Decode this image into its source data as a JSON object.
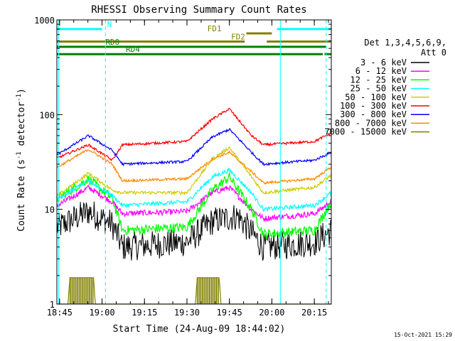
{
  "chart_data": {
    "type": "line",
    "title": "RHESSI Observing Summary Count Rates",
    "xlabel": "Start Time (24-Aug-09 18:44:02)",
    "ylabel_parts": [
      "Count Rate (s",
      "-1",
      " detector",
      "-1",
      ")"
    ],
    "yscale": "log",
    "ylim": [
      1,
      1000
    ],
    "xlim": [
      18.734,
      20.35
    ],
    "x_ticks": [
      {
        "v": 18.75,
        "label": "18:45"
      },
      {
        "v": 19.0,
        "label": "19:00"
      },
      {
        "v": 19.25,
        "label": "19:15"
      },
      {
        "v": 19.5,
        "label": "19:30"
      },
      {
        "v": 19.75,
        "label": "19:45"
      },
      {
        "v": 20.0,
        "label": "20:00"
      },
      {
        "v": 20.25,
        "label": "20:15"
      }
    ],
    "y_ticks": [
      {
        "v": 1,
        "label": "1"
      },
      {
        "v": 10,
        "label": "10"
      },
      {
        "v": 100,
        "label": "100"
      },
      {
        "v": 1000,
        "label": "1000"
      }
    ],
    "legend": {
      "title_lines": [
        "Det 1,3,4,5,6,9,",
        "Att 0"
      ],
      "position": "right"
    },
    "gaps": [
      [
        19.0,
        19.12
      ],
      [
        19.95,
        20.03
      ]
    ],
    "series": [
      {
        "name": "3 - 6 keV",
        "color": "#000000",
        "noise": 0.35,
        "base": [
          [
            18.74,
            6.5
          ],
          [
            18.92,
            9.5
          ],
          [
            19.06,
            7
          ],
          [
            19.12,
            4
          ],
          [
            19.5,
            4.5
          ],
          [
            19.65,
            7.5
          ],
          [
            19.8,
            8.5
          ],
          [
            19.95,
            4
          ],
          [
            20.25,
            4.5
          ],
          [
            20.35,
            6
          ]
        ]
      },
      {
        "name": "6 - 12 keV",
        "color": "#ff00ff",
        "noise": 0.07,
        "base": [
          [
            18.74,
            11
          ],
          [
            18.92,
            17
          ],
          [
            19.06,
            12
          ],
          [
            19.12,
            9
          ],
          [
            19.5,
            9.5
          ],
          [
            19.65,
            15
          ],
          [
            19.75,
            17
          ],
          [
            19.88,
            10
          ],
          [
            19.95,
            8
          ],
          [
            20.25,
            9
          ],
          [
            20.35,
            12
          ]
        ]
      },
      {
        "name": "12 - 25 keV",
        "color": "#00ff00",
        "noise": 0.12,
        "base": [
          [
            18.74,
            13
          ],
          [
            18.92,
            21
          ],
          [
            19.06,
            13
          ],
          [
            19.12,
            6
          ],
          [
            19.5,
            6.5
          ],
          [
            19.65,
            16
          ],
          [
            19.75,
            22
          ],
          [
            19.88,
            10
          ],
          [
            19.95,
            5.5
          ],
          [
            20.25,
            6
          ],
          [
            20.35,
            12
          ]
        ]
      },
      {
        "name": "25 - 50 keV",
        "color": "#00ffff",
        "noise": 0.05,
        "base": [
          [
            18.74,
            13
          ],
          [
            18.92,
            20
          ],
          [
            19.06,
            14
          ],
          [
            19.12,
            11
          ],
          [
            19.5,
            12
          ],
          [
            19.65,
            22
          ],
          [
            19.75,
            26
          ],
          [
            19.88,
            15
          ],
          [
            19.95,
            10
          ],
          [
            20.25,
            11
          ],
          [
            20.35,
            15
          ]
        ]
      },
      {
        "name": "50 - 100 keV",
        "color": "#cccc00",
        "noise": 0.04,
        "base": [
          [
            18.74,
            14
          ],
          [
            18.92,
            24
          ],
          [
            19.06,
            16
          ],
          [
            19.12,
            15
          ],
          [
            19.5,
            15
          ],
          [
            19.65,
            34
          ],
          [
            19.75,
            45
          ],
          [
            19.88,
            22
          ],
          [
            19.95,
            15
          ],
          [
            20.25,
            17
          ],
          [
            20.35,
            23
          ]
        ]
      },
      {
        "name": "100 - 300 keV",
        "color": "#ff0000",
        "noise": 0.03,
        "base": [
          [
            18.74,
            35
          ],
          [
            18.92,
            48
          ],
          [
            19.06,
            33
          ],
          [
            19.12,
            48
          ],
          [
            19.5,
            52
          ],
          [
            19.65,
            90
          ],
          [
            19.75,
            115
          ],
          [
            19.88,
            60
          ],
          [
            19.95,
            48
          ],
          [
            20.25,
            52
          ],
          [
            20.35,
            64
          ]
        ]
      },
      {
        "name": "300 - 800 keV",
        "color": "#0000ff",
        "noise": 0.03,
        "base": [
          [
            18.74,
            38
          ],
          [
            18.92,
            60
          ],
          [
            19.06,
            42
          ],
          [
            19.12,
            30
          ],
          [
            19.5,
            32
          ],
          [
            19.65,
            58
          ],
          [
            19.75,
            70
          ],
          [
            19.88,
            40
          ],
          [
            19.95,
            30
          ],
          [
            20.25,
            33
          ],
          [
            20.35,
            40
          ]
        ]
      },
      {
        "name": "800 - 7000 keV",
        "color": "#ff8800",
        "noise": 0.03,
        "base": [
          [
            18.74,
            28
          ],
          [
            18.92,
            43
          ],
          [
            19.06,
            30
          ],
          [
            19.12,
            20
          ],
          [
            19.5,
            21
          ],
          [
            19.65,
            34
          ],
          [
            19.75,
            40
          ],
          [
            19.88,
            25
          ],
          [
            19.95,
            19
          ],
          [
            20.25,
            21
          ],
          [
            20.35,
            28
          ]
        ]
      },
      {
        "name": "7000 - 15000 keV",
        "color": "#808000",
        "noise": 0,
        "base": [
          [
            18.74,
            1
          ],
          [
            18.8,
            1
          ],
          [
            18.81,
            1.9
          ],
          [
            18.95,
            1.9
          ],
          [
            18.96,
            1
          ],
          [
            19.55,
            1
          ],
          [
            19.56,
            1.9
          ],
          [
            19.69,
            1.9
          ],
          [
            19.7,
            1
          ],
          [
            20.35,
            1
          ]
        ]
      }
    ],
    "overlays": [
      {
        "label": "N",
        "color": "#00ffff",
        "y": 800,
        "x0": 18.734,
        "x1": 19.0,
        "label_x": 19.03
      },
      {
        "label": "N",
        "color": "#00ffff",
        "y": 800,
        "x0": 20.03,
        "x1": 20.35,
        "label_x": null
      },
      {
        "label": "FD1",
        "color": "#808000",
        "y": 720,
        "x0": 19.85,
        "x1": 20.0,
        "label_x": 19.62
      },
      {
        "label": "FD2",
        "color": "#808000",
        "y": 590,
        "x0": 18.734,
        "x1": 19.84,
        "label_x": 19.76
      },
      {
        "label": "FD2",
        "color": "#808000",
        "y": 590,
        "x0": 19.97,
        "x1": 20.35,
        "label_x": null
      },
      {
        "label": "RD0",
        "color": "#008000",
        "y": 520,
        "x0": 18.734,
        "x1": 20.32,
        "label_x": 19.02
      },
      {
        "label": "RD4",
        "color": "#008000",
        "y": 435,
        "x0": 18.734,
        "x1": 20.3,
        "label_x": 19.14
      },
      {
        "label": "",
        "color": "#008000",
        "y": 435,
        "x0": 20.31,
        "x1": 20.35,
        "label_x": null
      }
    ],
    "vlines": [
      {
        "x": 18.745,
        "color": "#00ffff",
        "dash": false
      },
      {
        "x": 19.02,
        "color": "#00ffff",
        "dash": true
      },
      {
        "x": 20.05,
        "color": "#00ffff",
        "dash": false
      },
      {
        "x": 20.32,
        "color": "#00ffff",
        "dash": true
      }
    ]
  },
  "footer": {
    "timestamp": "15-Oct-2021 15:29"
  }
}
